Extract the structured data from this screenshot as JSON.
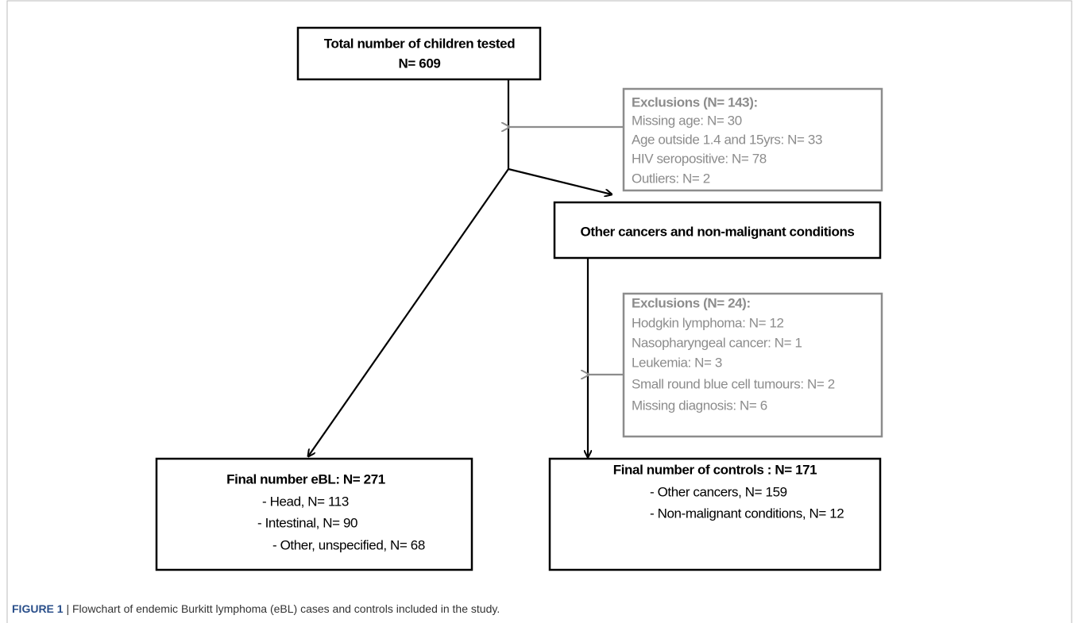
{
  "nodes": [
    {
      "lines": [
        "Total number of children tested",
        "N= 609"
      ]
    },
    {
      "lines": [
        "Exclusions (N= 143):",
        "Missing age: N= 30",
        "Age outside 1.4 and 15yrs: N= 33",
        "HIV seropositive: N= 78",
        "Outliers: N= 2"
      ]
    },
    {
      "lines": [
        "Other cancers and non-malignant conditions"
      ]
    },
    {
      "lines": [
        "Exclusions (N= 24):",
        "Hodgkin lymphoma: N= 12",
        "Nasopharyngeal cancer: N= 1",
        "Leukemia: N= 3",
        "Small round blue cell tumours: N= 2",
        "Missing diagnosis: N= 6"
      ]
    },
    {
      "lines": [
        "Final number eBL: N= 271",
        "- Head, N= 113",
        "- Intestinal, N= 90",
        "- Other, unspecified, N= 68"
      ]
    },
    {
      "lines": [
        "Final number of controls : N= 171",
        "- Other cancers, N= 159",
        "- Non-malignant conditions, N= 12"
      ]
    }
  ],
  "caption": {
    "label": "FIGURE 1",
    "text": " | Flowchart of endemic Burkitt lymphoma (eBL) cases and controls included in the study."
  }
}
